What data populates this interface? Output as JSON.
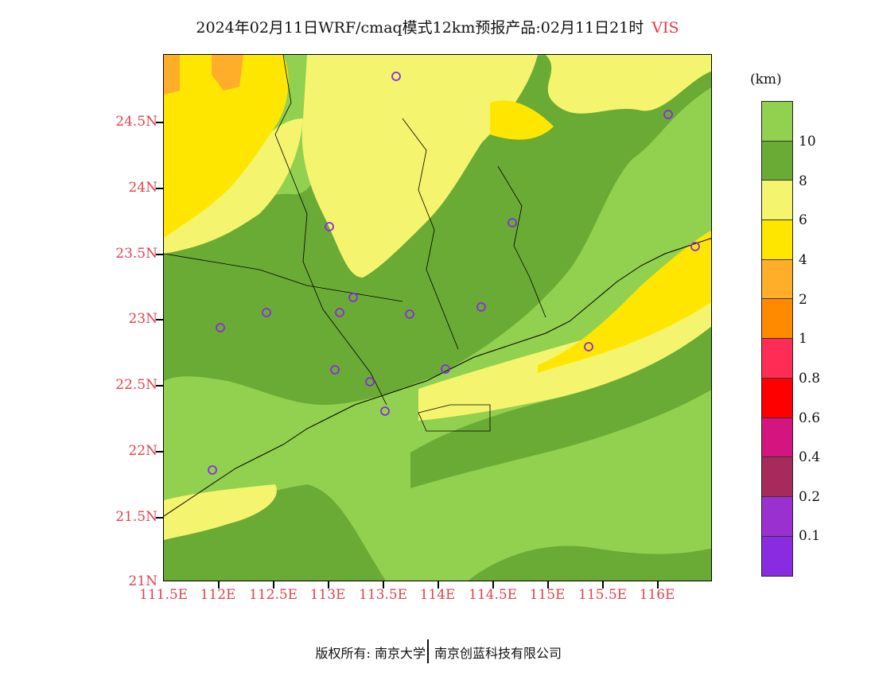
{
  "title": {
    "text": "2024年02月11日WRF/cmaq模式12km预报产品:02月11日21时",
    "variable": "VIS"
  },
  "axes": {
    "lat_labels": [
      "24.5N",
      "24N",
      "23.5N",
      "23N",
      "22.5N",
      "22N",
      "21.5N",
      "21N"
    ],
    "lon_labels": [
      "111.5E",
      "112E",
      "112.5E",
      "113E",
      "113.5E",
      "114E",
      "114.5E",
      "115E",
      "115.5E",
      "116E"
    ]
  },
  "colorbar": {
    "unit": "(km)",
    "labels": [
      "10",
      "8",
      "6",
      "4",
      "2",
      "1",
      "0.8",
      "0.6",
      "0.4",
      "0.2",
      "0.1"
    ],
    "colors": [
      "#92d050",
      "#6aab35",
      "#f4f46e",
      "#ffe600",
      "#ffae2a",
      "#ff8a00",
      "#ff2d55",
      "#ff0000",
      "#d4157f",
      "#a82a5a",
      "#9b30d0",
      "#8a2be2"
    ]
  },
  "footer": {
    "left": "版权所有: 南京大学",
    "right": "南京创蓝科技有限公司"
  },
  "colors": {
    "vis_gt10": "#92d050",
    "vis_8_10": "#6aab35",
    "vis_6_8": "#f4f46e",
    "vis_4_6": "#ffe600",
    "vis_2_4": "#ffae2a",
    "accent_label": "#e0434f"
  }
}
